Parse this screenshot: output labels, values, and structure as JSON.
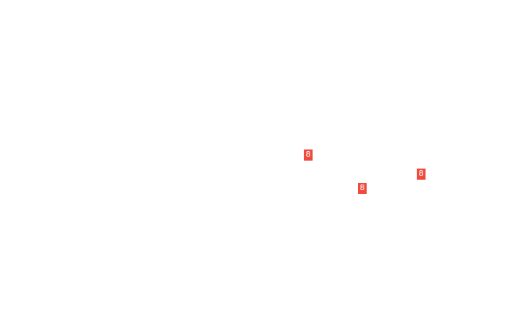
{
  "badge_color": "#f04a3e",
  "markers": [
    {
      "label": "8"
    },
    {
      "label": "8"
    },
    {
      "label": "8"
    }
  ]
}
